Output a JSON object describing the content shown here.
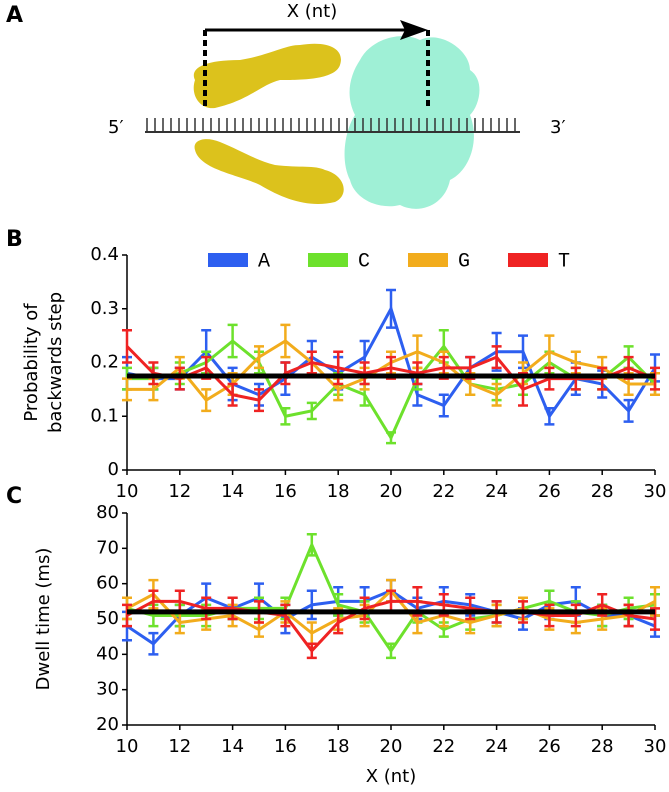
{
  "panel_labels": [
    "A",
    "B",
    "C"
  ],
  "diagram": {
    "arrow_label": "X (nt)",
    "five_prime": "5′",
    "three_prime": "3′"
  },
  "chart_data": [
    {
      "type": "line",
      "ylabel": [
        "Probability of",
        "backwards step"
      ],
      "x": [
        10,
        11,
        12,
        13,
        14,
        15,
        16,
        17,
        18,
        19,
        20,
        21,
        22,
        23,
        24,
        25,
        26,
        27,
        28,
        29,
        30
      ],
      "xlim": [
        10,
        30
      ],
      "xticks": [
        10,
        12,
        14,
        16,
        18,
        20,
        22,
        24,
        26,
        28,
        30
      ],
      "ylim": [
        0,
        0.4
      ],
      "yticks": [
        0,
        0.1,
        0.2,
        0.3,
        0.4
      ],
      "reference_line": 0.175,
      "legend": "top",
      "series": [
        {
          "name": "A",
          "color": "#2d5ff0",
          "values": [
            0.18,
            0.17,
            0.17,
            0.22,
            0.16,
            0.14,
            0.17,
            0.21,
            0.18,
            0.21,
            0.3,
            0.14,
            0.12,
            0.19,
            0.22,
            0.22,
            0.1,
            0.17,
            0.16,
            0.11,
            0.19
          ],
          "errors": [
            0.03,
            0.02,
            0.02,
            0.04,
            0.03,
            0.02,
            0.03,
            0.03,
            0.03,
            0.03,
            0.035,
            0.02,
            0.02,
            0.02,
            0.035,
            0.03,
            0.015,
            0.03,
            0.025,
            0.02,
            0.025
          ]
        },
        {
          "name": "C",
          "color": "#6de12c",
          "values": [
            0.17,
            0.17,
            0.18,
            0.2,
            0.24,
            0.2,
            0.1,
            0.11,
            0.16,
            0.14,
            0.06,
            0.17,
            0.23,
            0.16,
            0.15,
            0.16,
            0.2,
            0.17,
            0.17,
            0.21,
            0.16
          ],
          "errors": [
            0.02,
            0.02,
            0.02,
            0.02,
            0.03,
            0.02,
            0.015,
            0.015,
            0.02,
            0.02,
            0.01,
            0.02,
            0.03,
            0.02,
            0.02,
            0.02,
            0.02,
            0.02,
            0.02,
            0.02,
            0.02
          ]
        },
        {
          "name": "G",
          "color": "#f2ac1c",
          "values": [
            0.15,
            0.15,
            0.19,
            0.13,
            0.16,
            0.21,
            0.24,
            0.2,
            0.15,
            0.17,
            0.2,
            0.22,
            0.2,
            0.16,
            0.14,
            0.18,
            0.22,
            0.2,
            0.19,
            0.16,
            0.16
          ],
          "errors": [
            0.02,
            0.02,
            0.02,
            0.02,
            0.02,
            0.02,
            0.03,
            0.02,
            0.02,
            0.02,
            0.02,
            0.03,
            0.02,
            0.02,
            0.02,
            0.02,
            0.03,
            0.02,
            0.02,
            0.02,
            0.02
          ]
        },
        {
          "name": "T",
          "color": "#ef2323",
          "values": [
            0.23,
            0.18,
            0.17,
            0.19,
            0.14,
            0.13,
            0.18,
            0.2,
            0.19,
            0.18,
            0.19,
            0.18,
            0.19,
            0.19,
            0.21,
            0.15,
            0.17,
            0.17,
            0.17,
            0.19,
            0.17
          ],
          "errors": [
            0.03,
            0.02,
            0.02,
            0.02,
            0.02,
            0.02,
            0.02,
            0.02,
            0.03,
            0.02,
            0.02,
            0.02,
            0.02,
            0.02,
            0.02,
            0.03,
            0.02,
            0.02,
            0.02,
            0.02,
            0.02
          ]
        }
      ]
    },
    {
      "type": "line",
      "xlabel": "X (nt)",
      "ylabel": [
        "Dwell time (ms)"
      ],
      "x": [
        10,
        11,
        12,
        13,
        14,
        15,
        16,
        17,
        18,
        19,
        20,
        21,
        22,
        23,
        24,
        25,
        26,
        27,
        28,
        29,
        30
      ],
      "xlim": [
        10,
        30
      ],
      "xticks": [
        10,
        12,
        14,
        16,
        18,
        20,
        22,
        24,
        26,
        28,
        30
      ],
      "ylim": [
        20,
        80
      ],
      "yticks": [
        20,
        30,
        40,
        50,
        60,
        70,
        80
      ],
      "reference_line": 52,
      "series": [
        {
          "color": "#2d5ff0",
          "values": [
            48,
            43,
            51,
            56,
            53,
            56,
            50,
            54,
            55,
            55,
            58,
            53,
            55,
            54,
            52,
            50,
            54,
            55,
            51,
            51,
            48
          ],
          "errors": [
            4,
            3,
            3,
            4,
            3,
            4,
            4,
            4,
            4,
            4,
            3,
            3,
            4,
            3,
            3,
            3,
            4,
            4,
            3,
            3,
            3
          ]
        },
        {
          "color": "#6de12c",
          "values": [
            53,
            51,
            51,
            51,
            53,
            53,
            53,
            71,
            54,
            52,
            41,
            52,
            47,
            50,
            51,
            53,
            55,
            52,
            51,
            53,
            54
          ],
          "errors": [
            3,
            3,
            3,
            3,
            3,
            3,
            3,
            3,
            3,
            3,
            2,
            3,
            2,
            3,
            3,
            3,
            3,
            3,
            3,
            3,
            3
          ]
        },
        {
          "color": "#f2ac1c",
          "values": [
            53,
            57,
            49,
            50,
            51,
            47,
            52,
            46,
            50,
            51,
            58,
            49,
            51,
            49,
            51,
            53,
            50,
            49,
            50,
            51,
            55
          ],
          "errors": [
            3,
            4,
            3,
            3,
            3,
            2,
            3,
            3,
            3,
            3,
            3,
            3,
            3,
            3,
            3,
            3,
            3,
            3,
            3,
            3,
            4
          ]
        },
        {
          "color": "#ef2323",
          "values": [
            51,
            55,
            55,
            53,
            53,
            52,
            51,
            41,
            49,
            53,
            55,
            55,
            54,
            53,
            52,
            52,
            51,
            51,
            54,
            51,
            50
          ],
          "errors": [
            3,
            3,
            3,
            3,
            3,
            3,
            3,
            2,
            3,
            3,
            3,
            4,
            3,
            3,
            3,
            3,
            3,
            3,
            3,
            3,
            3
          ]
        }
      ]
    }
  ]
}
